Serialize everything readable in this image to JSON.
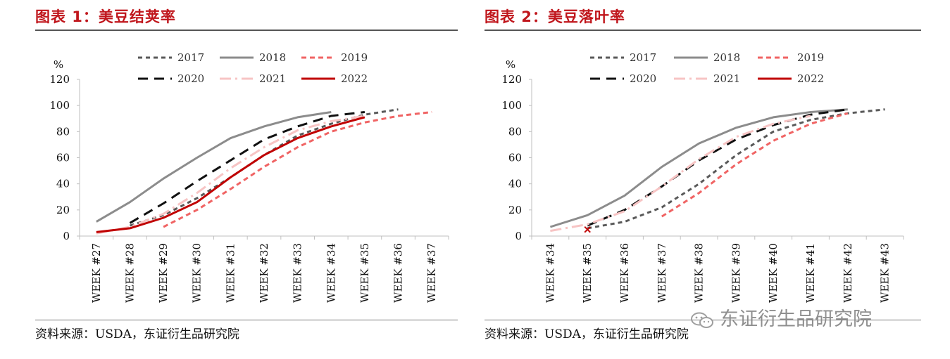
{
  "left": {
    "title": "图表 1：美豆结荚率",
    "source": "资料来源：USDA，东证衍生品研究院",
    "chart_data": {
      "type": "line",
      "ylabel": "%",
      "ylim": [
        0,
        120
      ],
      "yticks": [
        0,
        20,
        40,
        60,
        80,
        100,
        120
      ],
      "categories": [
        "WEEK #27",
        "WEEK #28",
        "WEEK #29",
        "WEEK #30",
        "WEEK #31",
        "WEEK #32",
        "WEEK #33",
        "WEEK #34",
        "WEEK #35",
        "WEEK #36",
        "WEEK #37"
      ],
      "legend": [
        "2017",
        "2018",
        "2019",
        "2020",
        "2021",
        "2022"
      ],
      "series": [
        {
          "name": "2017",
          "values": [
            null,
            8,
            16,
            29,
            45,
            62,
            77,
            86,
            93,
            97,
            null
          ],
          "color": "#595959",
          "dash": "6,5",
          "width": 3
        },
        {
          "name": "2018",
          "values": [
            11,
            26,
            44,
            60,
            75,
            84,
            91,
            95,
            null,
            null,
            null
          ],
          "color": "#8c8c8c",
          "dash": "",
          "width": 3
        },
        {
          "name": "2019",
          "values": [
            null,
            null,
            7,
            20,
            36,
            53,
            68,
            80,
            87,
            92,
            95
          ],
          "color": "#f06464",
          "dash": "7,5",
          "width": 3
        },
        {
          "name": "2020",
          "values": [
            null,
            10,
            25,
            42,
            58,
            74,
            84,
            92,
            95,
            null,
            null
          ],
          "color": "#111111",
          "dash": "14,9",
          "width": 3
        },
        {
          "name": "2021",
          "values": [
            2,
            7,
            17,
            33,
            52,
            68,
            81,
            88,
            92,
            null,
            null
          ],
          "color": "#f7c4c4",
          "dash": "16,6,3,6",
          "width": 3
        },
        {
          "name": "2022",
          "values": [
            3,
            6,
            14,
            26,
            45,
            62,
            75,
            84,
            91,
            null,
            null
          ],
          "color": "#c00000",
          "dash": "",
          "width": 3
        }
      ]
    }
  },
  "right": {
    "title": "图表 2：美豆落叶率",
    "source": "资料来源：USDA，东证衍生品研究院",
    "chart_data": {
      "type": "line",
      "ylabel": "%",
      "ylim": [
        0,
        120
      ],
      "yticks": [
        0,
        20,
        40,
        60,
        80,
        100,
        120
      ],
      "categories": [
        "WEEK #34",
        "WEEK #35",
        "WEEK #36",
        "WEEK #37",
        "WEEK #38",
        "WEEK #39",
        "WEEK #40",
        "WEEK #41",
        "WEEK #42",
        "WEEK #43"
      ],
      "legend": [
        "2017",
        "2018",
        "2019",
        "2020",
        "2021",
        "2022"
      ],
      "series": [
        {
          "name": "2017",
          "values": [
            null,
            6,
            11,
            22,
            40,
            62,
            80,
            89,
            94,
            97
          ],
          "color": "#595959",
          "dash": "6,5",
          "width": 3
        },
        {
          "name": "2018",
          "values": [
            7,
            16,
            31,
            53,
            71,
            83,
            91,
            95,
            97,
            null
          ],
          "color": "#8c8c8c",
          "dash": "",
          "width": 3
        },
        {
          "name": "2019",
          "values": [
            null,
            null,
            null,
            15,
            33,
            55,
            73,
            86,
            94,
            null
          ],
          "color": "#f06464",
          "dash": "7,5",
          "width": 3
        },
        {
          "name": "2020",
          "values": [
            null,
            8,
            20,
            38,
            58,
            74,
            85,
            93,
            97,
            null
          ],
          "color": "#111111",
          "dash": "14,9",
          "width": 3
        },
        {
          "name": "2021",
          "values": [
            4,
            9,
            19,
            38,
            59,
            76,
            86,
            92,
            null,
            null
          ],
          "color": "#f7c4c4",
          "dash": "16,6,3,6",
          "width": 3
        },
        {
          "name": "2022",
          "values": [
            null,
            5,
            null,
            null,
            null,
            null,
            null,
            null,
            null,
            null
          ],
          "color": "#c00000",
          "dash": "",
          "width": 3
        }
      ]
    }
  },
  "watermark": "东证衍生品研究院"
}
